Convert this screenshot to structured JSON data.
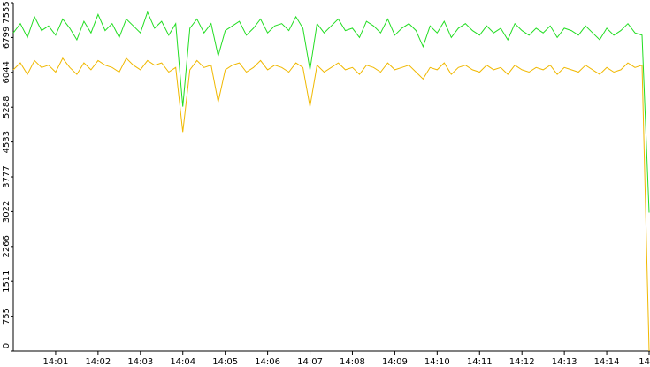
{
  "chart_data": {
    "type": "line",
    "categories": [
      null,
      null,
      null,
      null,
      null,
      null,
      "14:01",
      null,
      null,
      null,
      null,
      null,
      "14:02",
      null,
      null,
      null,
      null,
      null,
      "14:03",
      null,
      null,
      null,
      null,
      null,
      "14:04",
      null,
      null,
      null,
      null,
      null,
      "14:05",
      null,
      null,
      null,
      null,
      null,
      "14:06",
      null,
      null,
      null,
      null,
      null,
      "14:07",
      null,
      null,
      null,
      null,
      null,
      "14:08",
      null,
      null,
      null,
      null,
      null,
      "14:09",
      null,
      null,
      null,
      null,
      null,
      "14:10",
      null,
      null,
      null,
      null,
      null,
      "14:11",
      null,
      null,
      null,
      null,
      null,
      "14:12",
      null,
      null,
      null,
      null,
      null,
      "14:13",
      null,
      null,
      null,
      null,
      null,
      "14:14",
      null,
      null,
      null,
      null,
      null,
      "14"
    ],
    "series": [
      {
        "color": "#22dd22",
        "values": [
          6900,
          7100,
          6800,
          7250,
          6950,
          7050,
          6850,
          7200,
          7000,
          6750,
          7150,
          6900,
          7300,
          6950,
          7100,
          6800,
          7200,
          7050,
          6900,
          7350,
          7000,
          7150,
          6850,
          7100,
          5300,
          7000,
          7200,
          6900,
          7100,
          6400,
          6950,
          7050,
          7150,
          6850,
          7000,
          7200,
          6900,
          7050,
          7100,
          6950,
          7250,
          7000,
          6100,
          7100,
          6900,
          7050,
          7200,
          6950,
          7000,
          6800,
          7150,
          7050,
          6900,
          7200,
          6850,
          7000,
          7100,
          6950,
          6600,
          7050,
          6900,
          7150,
          6800,
          7000,
          7100,
          6950,
          6850,
          7050,
          6900,
          7000,
          6750,
          7100,
          6950,
          6850,
          7000,
          6900,
          7050,
          6800,
          7000,
          6950,
          6850,
          7050,
          6900,
          6750,
          7000,
          6850,
          6950,
          7100,
          6900,
          6850,
          3000
        ]
      },
      {
        "color": "#f0b800",
        "values": [
          6100,
          6250,
          6000,
          6300,
          6150,
          6200,
          6050,
          6350,
          6150,
          6000,
          6250,
          6100,
          6300,
          6200,
          6150,
          6050,
          6350,
          6200,
          6100,
          6300,
          6200,
          6250,
          6050,
          6150,
          4750,
          6100,
          6300,
          6150,
          6200,
          5400,
          6100,
          6200,
          6250,
          6050,
          6150,
          6300,
          6100,
          6200,
          6150,
          6050,
          6250,
          6150,
          5300,
          6200,
          6050,
          6150,
          6250,
          6100,
          6150,
          6000,
          6200,
          6150,
          6050,
          6250,
          6100,
          6150,
          6200,
          6050,
          5900,
          6150,
          6100,
          6250,
          6000,
          6150,
          6200,
          6100,
          6050,
          6200,
          6100,
          6150,
          6000,
          6200,
          6100,
          6050,
          6150,
          6100,
          6200,
          6000,
          6150,
          6100,
          6050,
          6200,
          6100,
          6000,
          6150,
          6050,
          6100,
          6250,
          6150,
          6200,
          0
        ]
      }
    ],
    "ylim": [
      0,
      7555
    ],
    "yticks": [
      0,
      755,
      1511,
      2266,
      3022,
      3777,
      4533,
      5288,
      6044,
      6799,
      7555
    ]
  }
}
